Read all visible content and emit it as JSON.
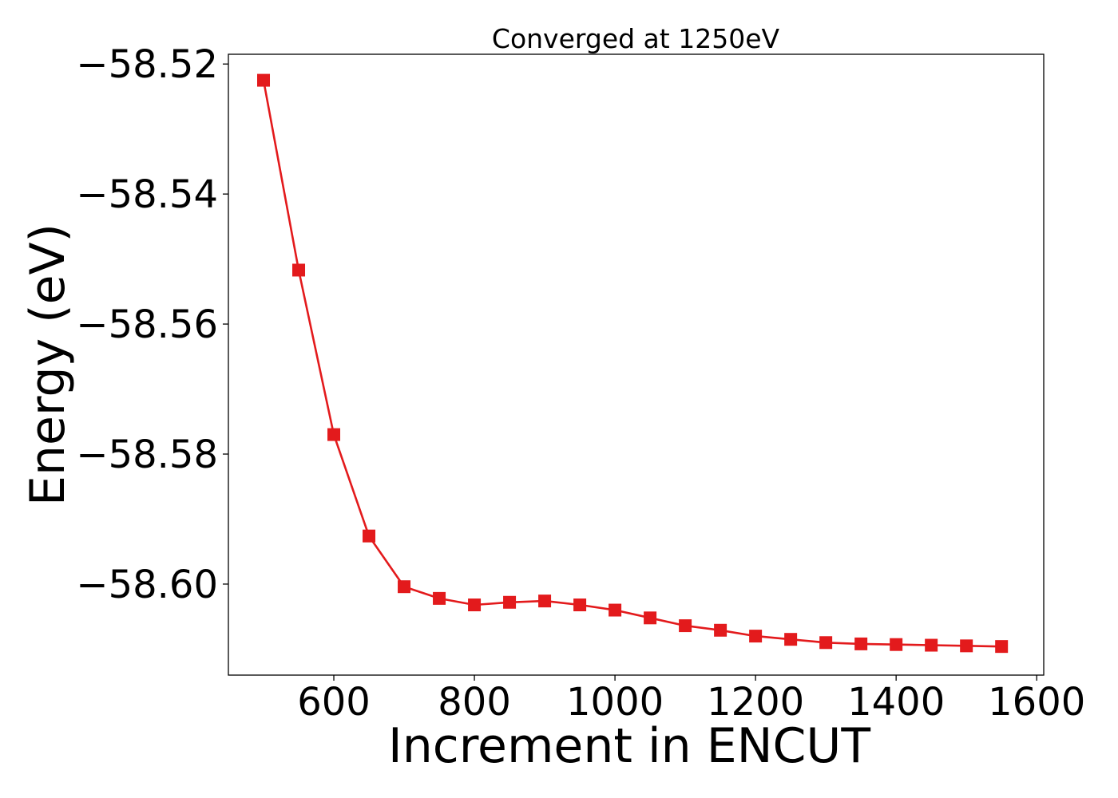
{
  "chart_data": {
    "type": "line",
    "title": "Converged at 1250eV",
    "xlabel": "Increment in ENCUT",
    "ylabel": "Energy (eV)",
    "xlim": [
      450,
      1610
    ],
    "ylim": [
      -58.614,
      -58.5185
    ],
    "xticks": [
      600,
      800,
      1000,
      1200,
      1400,
      1600
    ],
    "xtick_labels": [
      "600",
      "800",
      "1000",
      "1200",
      "1400",
      "1600"
    ],
    "yticks": [
      -58.52,
      -58.54,
      -58.56,
      -58.58,
      -58.6
    ],
    "ytick_labels": [
      "−58.52",
      "−58.54",
      "−58.56",
      "−58.58",
      "−58.60"
    ],
    "grid": false,
    "legend": false,
    "marker": "square",
    "color": "#e31a1c",
    "series": [
      {
        "x": [
          500,
          550,
          600,
          650,
          700,
          750,
          800,
          850,
          900,
          950,
          1000,
          1050,
          1100,
          1150,
          1200,
          1250,
          1300,
          1350,
          1400,
          1450,
          1500,
          1550
        ],
        "values": [
          -58.5225,
          -58.5517,
          -58.577,
          -58.5926,
          -58.6004,
          -58.6022,
          -58.6032,
          -58.6028,
          -58.6026,
          -58.6032,
          -58.604,
          -58.6052,
          -58.6064,
          -58.6071,
          -58.608,
          -58.6085,
          -58.609,
          -58.6092,
          -58.6093,
          -58.6094,
          -58.6095,
          -58.6096
        ]
      }
    ]
  }
}
